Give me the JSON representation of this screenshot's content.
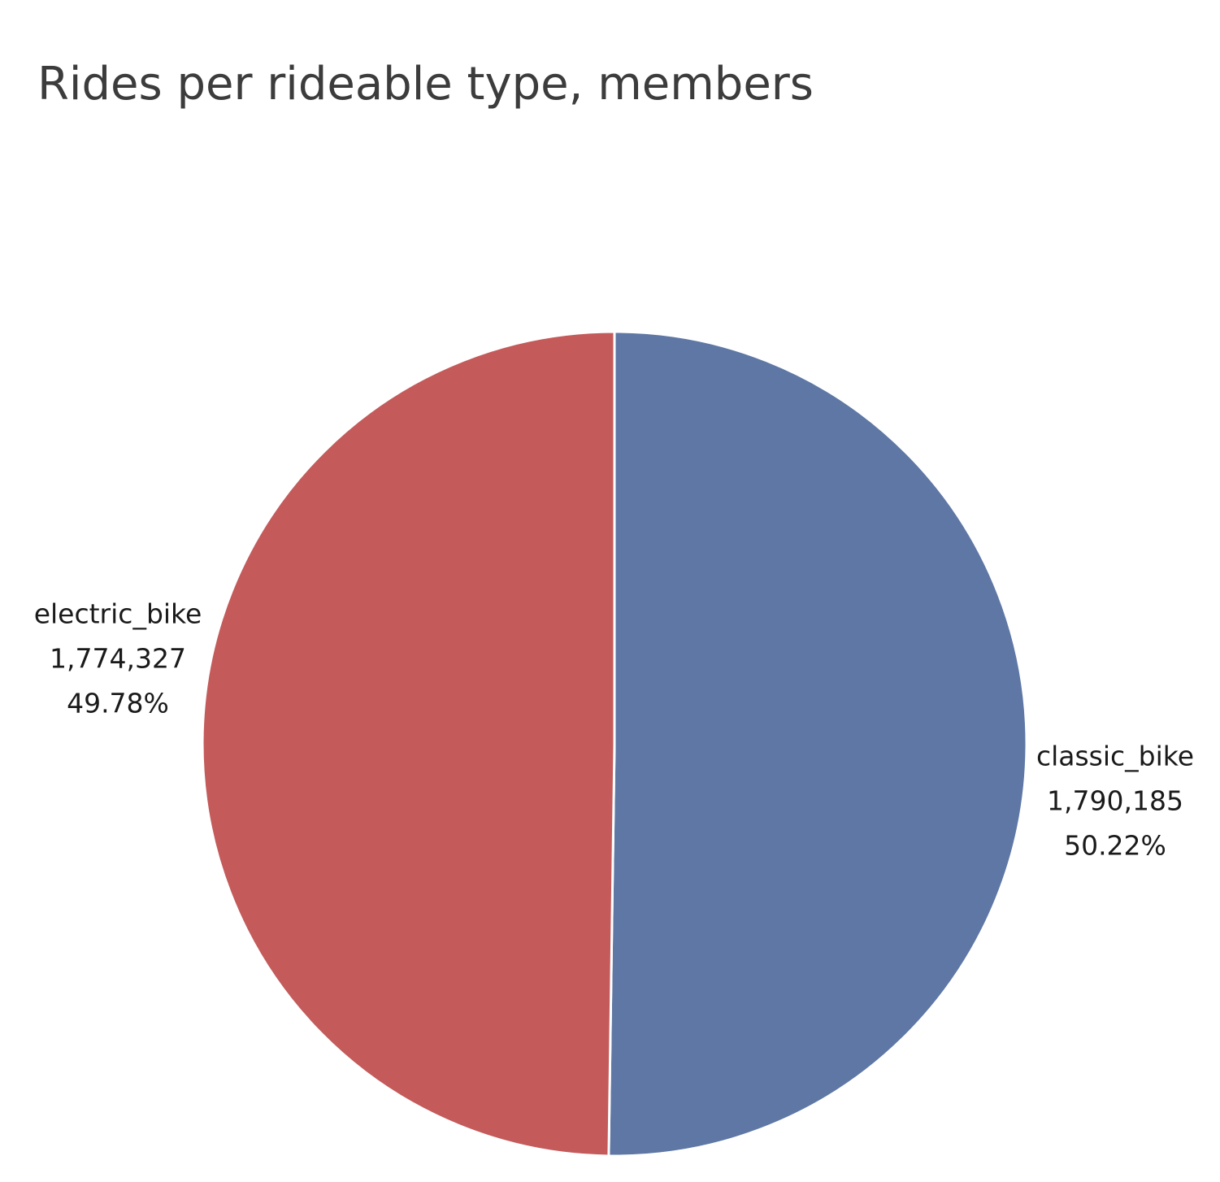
{
  "chart_data": {
    "type": "pie",
    "title": "Rides per rideable type, members",
    "slices": [
      {
        "label": "classic_bike",
        "value": 1790185,
        "value_text": "1,790,185",
        "percent": 50.22,
        "percent_text": "50.22%",
        "color": "#5e77a4"
      },
      {
        "label": "electric_bike",
        "value": 1774327,
        "value_text": "1,774,327",
        "percent": 49.78,
        "percent_text": "49.78%",
        "color": "#c45a5a"
      }
    ],
    "start_direction": "12 o'clock",
    "order": "clockwise",
    "legend": "none"
  }
}
